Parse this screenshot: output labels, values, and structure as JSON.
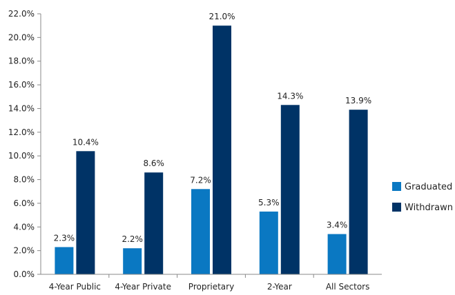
{
  "chart_data": {
    "type": "bar",
    "categories": [
      "4-Year Public",
      "4-Year Private",
      "Proprietary",
      "2-Year",
      "All Sectors"
    ],
    "series": [
      {
        "name": "Graduated",
        "values": [
          2.3,
          2.2,
          7.2,
          5.3,
          3.4
        ],
        "labels": [
          "2.3%",
          "2.2%",
          "7.2%",
          "5.3%",
          "3.4%"
        ],
        "color": "#0a78c2"
      },
      {
        "name": "Withdrawn",
        "values": [
          10.4,
          8.6,
          21.0,
          14.3,
          13.9
        ],
        "labels": [
          "10.4%",
          "8.6%",
          "21.0%",
          "14.3%",
          "13.9%"
        ],
        "color": "#003366"
      }
    ],
    "ylim": [
      0,
      22
    ],
    "yticks": [
      "0.0%",
      "2.0%",
      "4.0%",
      "6.0%",
      "8.0%",
      "10.0%",
      "12.0%",
      "14.0%",
      "16.0%",
      "18.0%",
      "20.0%",
      "22.0%"
    ],
    "grid": false,
    "legend_position": "right"
  }
}
